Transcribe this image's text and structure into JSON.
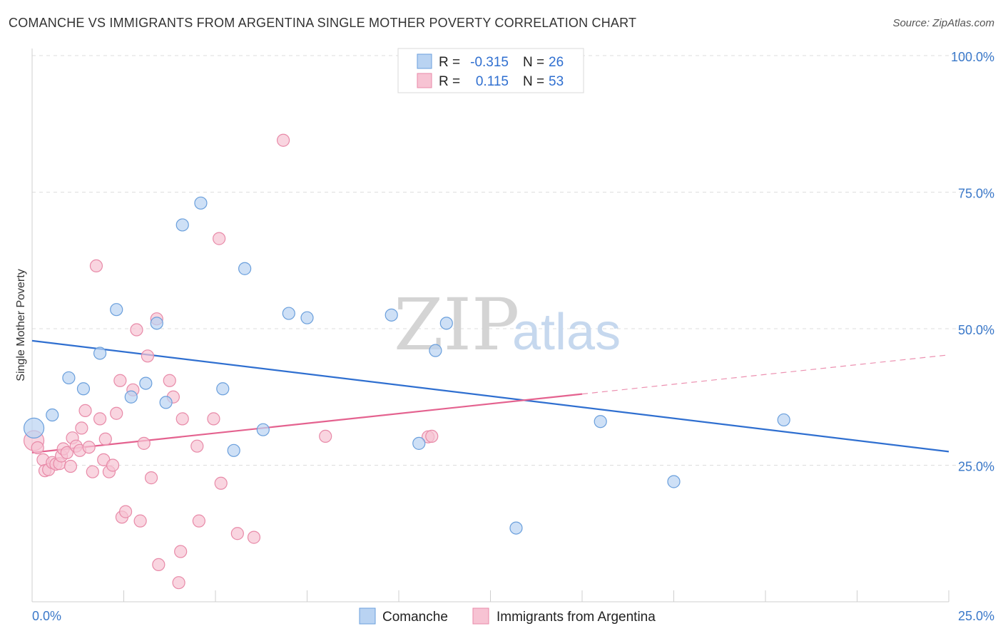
{
  "header": {
    "title": "COMANCHE VS IMMIGRANTS FROM ARGENTINA SINGLE MOTHER POVERTY CORRELATION CHART",
    "source": "Source: ZipAtlas.com"
  },
  "watermark": {
    "zip": "ZIP",
    "atlas": "atlas"
  },
  "legend": {
    "rows": [
      {
        "r_label": "R =",
        "r_value": "-0.315",
        "n_label": "N =",
        "n_value": "26"
      },
      {
        "r_label": "R =",
        "r_value": "0.115",
        "n_label": "N =",
        "n_value": "53"
      }
    ]
  },
  "bottom_legend": {
    "items": [
      {
        "label": "Comanche"
      },
      {
        "label": "Immigrants from Argentina"
      }
    ]
  },
  "colors": {
    "comanche_fill": "#b9d3f2",
    "comanche_stroke": "#6a9fdc",
    "comanche_line": "#2f6fd0",
    "argentina_fill": "#f7c3d3",
    "argentina_stroke": "#e88aa8",
    "argentina_line": "#e4628f",
    "grid": "#dddddd",
    "tick_text": "#3a78c9"
  },
  "chart_data": {
    "type": "scatter",
    "title": "COMANCHE VS IMMIGRANTS FROM ARGENTINA SINGLE MOTHER POVERTY CORRELATION CHART",
    "xlabel": "",
    "ylabel": "Single Mother Poverty",
    "xlim": [
      0,
      25
    ],
    "ylim": [
      0,
      100
    ],
    "x_tick_labels": [
      "0.0%",
      "25.0%"
    ],
    "y_tick_values": [
      25,
      50,
      75,
      100
    ],
    "y_tick_labels": [
      "25.0%",
      "50.0%",
      "75.0%",
      "100.0%"
    ],
    "series": [
      {
        "name": "Comanche",
        "r": -0.315,
        "n": 26,
        "trend": {
          "x": [
            0,
            25
          ],
          "y": [
            47.8,
            27.5
          ],
          "dashed_from": null
        },
        "points": [
          {
            "x": 0.05,
            "y": 31.8,
            "big": true
          },
          {
            "x": 0.55,
            "y": 34.2
          },
          {
            "x": 1.0,
            "y": 41.0
          },
          {
            "x": 1.4,
            "y": 39.0
          },
          {
            "x": 1.85,
            "y": 45.5
          },
          {
            "x": 2.3,
            "y": 53.5
          },
          {
            "x": 2.7,
            "y": 37.5
          },
          {
            "x": 3.1,
            "y": 40.0
          },
          {
            "x": 3.4,
            "y": 51.0
          },
          {
            "x": 3.65,
            "y": 36.5
          },
          {
            "x": 4.1,
            "y": 69.0
          },
          {
            "x": 4.6,
            "y": 73.0
          },
          {
            "x": 5.2,
            "y": 39.0
          },
          {
            "x": 5.5,
            "y": 27.7
          },
          {
            "x": 5.8,
            "y": 61.0
          },
          {
            "x": 6.3,
            "y": 31.5
          },
          {
            "x": 7.0,
            "y": 52.8
          },
          {
            "x": 7.5,
            "y": 52.0
          },
          {
            "x": 9.8,
            "y": 52.5
          },
          {
            "x": 10.55,
            "y": 29.0
          },
          {
            "x": 11.0,
            "y": 46.0
          },
          {
            "x": 11.3,
            "y": 51.0
          },
          {
            "x": 13.2,
            "y": 13.5
          },
          {
            "x": 15.5,
            "y": 33.0
          },
          {
            "x": 17.5,
            "y": 22.0
          },
          {
            "x": 20.5,
            "y": 33.3
          }
        ]
      },
      {
        "name": "Immigrants from Argentina",
        "r": 0.115,
        "n": 53,
        "trend": {
          "x": [
            0,
            25
          ],
          "y": [
            27.3,
            45.2
          ],
          "dashed_from": 15.0
        },
        "points": [
          {
            "x": 0.05,
            "y": 29.5,
            "big": true
          },
          {
            "x": 0.15,
            "y": 28.2
          },
          {
            "x": 0.3,
            "y": 26.0
          },
          {
            "x": 0.35,
            "y": 24.0
          },
          {
            "x": 0.45,
            "y": 24.2
          },
          {
            "x": 0.55,
            "y": 25.5
          },
          {
            "x": 0.65,
            "y": 25.2
          },
          {
            "x": 0.75,
            "y": 25.3
          },
          {
            "x": 0.8,
            "y": 26.7
          },
          {
            "x": 0.85,
            "y": 28.0
          },
          {
            "x": 0.95,
            "y": 27.3
          },
          {
            "x": 1.05,
            "y": 24.8
          },
          {
            "x": 1.1,
            "y": 30.0
          },
          {
            "x": 1.2,
            "y": 28.5
          },
          {
            "x": 1.3,
            "y": 27.7
          },
          {
            "x": 1.35,
            "y": 31.8
          },
          {
            "x": 1.45,
            "y": 35.0
          },
          {
            "x": 1.55,
            "y": 28.3
          },
          {
            "x": 1.65,
            "y": 23.8
          },
          {
            "x": 1.75,
            "y": 61.5
          },
          {
            "x": 1.85,
            "y": 33.5
          },
          {
            "x": 1.95,
            "y": 26.0
          },
          {
            "x": 2.0,
            "y": 29.8
          },
          {
            "x": 2.1,
            "y": 23.8
          },
          {
            "x": 2.2,
            "y": 25.0
          },
          {
            "x": 2.3,
            "y": 34.5
          },
          {
            "x": 2.4,
            "y": 40.5
          },
          {
            "x": 2.45,
            "y": 15.5
          },
          {
            "x": 2.55,
            "y": 16.5
          },
          {
            "x": 2.75,
            "y": 38.8
          },
          {
            "x": 2.85,
            "y": 49.8
          },
          {
            "x": 2.95,
            "y": 14.8
          },
          {
            "x": 3.05,
            "y": 29.0
          },
          {
            "x": 3.15,
            "y": 45.0
          },
          {
            "x": 3.25,
            "y": 22.7
          },
          {
            "x": 3.4,
            "y": 51.8
          },
          {
            "x": 3.45,
            "y": 6.8
          },
          {
            "x": 3.75,
            "y": 40.5
          },
          {
            "x": 3.85,
            "y": 37.5
          },
          {
            "x": 4.0,
            "y": 3.5
          },
          {
            "x": 4.05,
            "y": 9.2
          },
          {
            "x": 4.1,
            "y": 33.5
          },
          {
            "x": 4.5,
            "y": 28.5
          },
          {
            "x": 4.55,
            "y": 14.8
          },
          {
            "x": 4.95,
            "y": 33.5
          },
          {
            "x": 5.1,
            "y": 66.5
          },
          {
            "x": 5.15,
            "y": 21.7
          },
          {
            "x": 5.6,
            "y": 12.5
          },
          {
            "x": 6.05,
            "y": 11.8
          },
          {
            "x": 6.85,
            "y": 84.5
          },
          {
            "x": 8.0,
            "y": 30.3
          },
          {
            "x": 10.8,
            "y": 30.2
          },
          {
            "x": 10.9,
            "y": 30.3
          }
        ]
      }
    ]
  }
}
